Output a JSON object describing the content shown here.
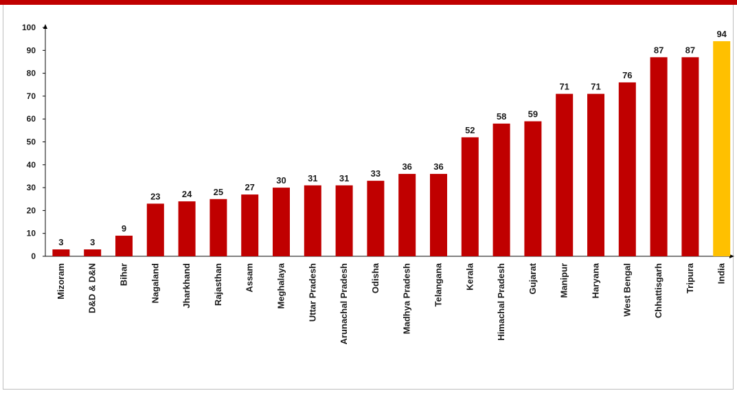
{
  "colors": {
    "top_bar": "#c00000",
    "bar": "#c00000",
    "highlight_bar": "#ffc000",
    "axis": "#000000"
  },
  "chart_data": {
    "type": "bar",
    "title": "",
    "xlabel": "",
    "ylabel": "",
    "ylim": [
      0,
      100
    ],
    "yticks": [
      0,
      10,
      20,
      30,
      40,
      50,
      60,
      70,
      80,
      90,
      100
    ],
    "grid": false,
    "legend": "none",
    "categories": [
      "Mizoram",
      "D&D & D&N",
      "Bihar",
      "Nagaland",
      "Jharkhand",
      "Rajasthan",
      "Assam",
      "Meghalaya",
      "Uttar Pradesh",
      "Arunachal Pradesh",
      "Odisha",
      "Madhya Pradesh",
      "Telangana",
      "Kerala",
      "Himachal Pradesh",
      "Gujarat",
      "Manipur",
      "Haryana",
      "West Bengal",
      "Chhattisgarh",
      "Tripura",
      "India"
    ],
    "values": [
      3,
      3,
      9,
      23,
      24,
      25,
      27,
      30,
      31,
      31,
      33,
      36,
      36,
      52,
      58,
      59,
      71,
      71,
      76,
      87,
      87,
      94
    ],
    "highlight": [
      "India"
    ]
  }
}
